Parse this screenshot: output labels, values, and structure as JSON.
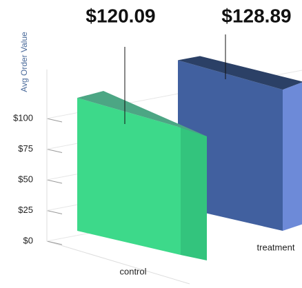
{
  "chart_data": {
    "type": "bar3d",
    "y_axis_label": "Avg Order Value",
    "categories": [
      "control",
      "treatment"
    ],
    "values": [
      120.09,
      128.89
    ],
    "value_labels": [
      "$120.09",
      "$128.89"
    ],
    "colors": [
      "#3dd98a",
      "#41609f"
    ],
    "ylim": [
      0,
      140
    ],
    "yticks": [
      {
        "value": 0,
        "label": "$0"
      },
      {
        "value": 25,
        "label": "$25"
      },
      {
        "value": 50,
        "label": "$50"
      },
      {
        "value": 75,
        "label": "$75"
      },
      {
        "value": 100,
        "label": "$100"
      }
    ],
    "grid": true
  }
}
